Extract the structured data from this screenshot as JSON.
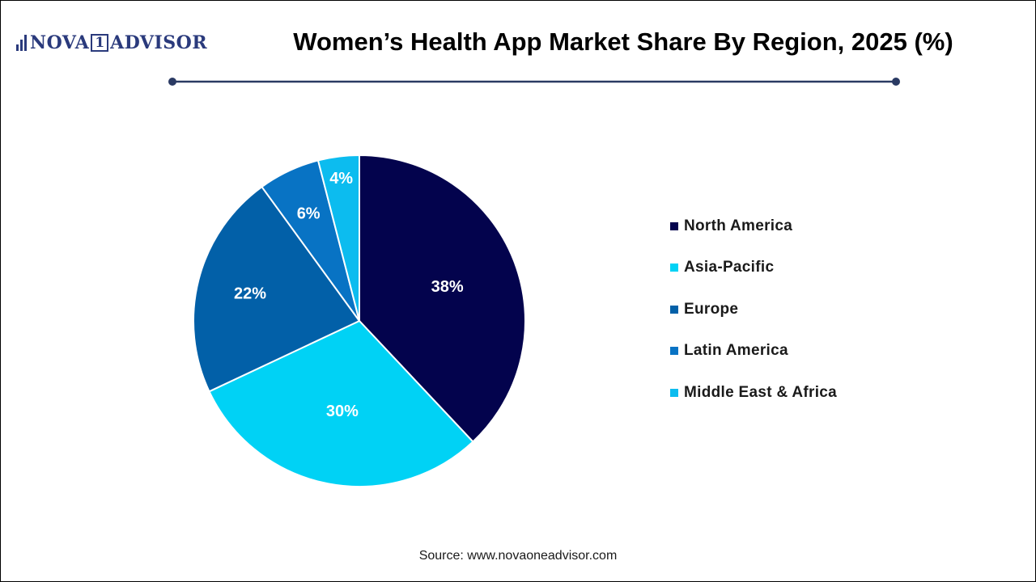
{
  "logo": {
    "text_left": "NOVA",
    "text_box": "1",
    "text_right": "ADVISOR"
  },
  "title": "Women’s Health App Market Share By Region, 2025 (%)",
  "source": "Source: www.novaoneadvisor.com",
  "colors": {
    "title_rule": "#2a3a63",
    "slice_border": "#ffffff",
    "label_text": "#ffffff"
  },
  "chart_data": {
    "type": "pie",
    "title": "Women’s Health App Market Share By Region, 2025 (%)",
    "legend_position": "right",
    "slices": [
      {
        "name": "North America",
        "value": 38,
        "label": "38%",
        "color": "#03034d"
      },
      {
        "name": "Asia-Pacific",
        "value": 30,
        "label": "30%",
        "color": "#00d2f5"
      },
      {
        "name": "Europe",
        "value": 22,
        "label": "22%",
        "color": "#0260a8"
      },
      {
        "name": "Latin America",
        "value": 6,
        "label": "6%",
        "color": "#0873c4"
      },
      {
        "name": "Middle East & Africa",
        "value": 4,
        "label": "4%",
        "color": "#0cbcef"
      }
    ]
  }
}
